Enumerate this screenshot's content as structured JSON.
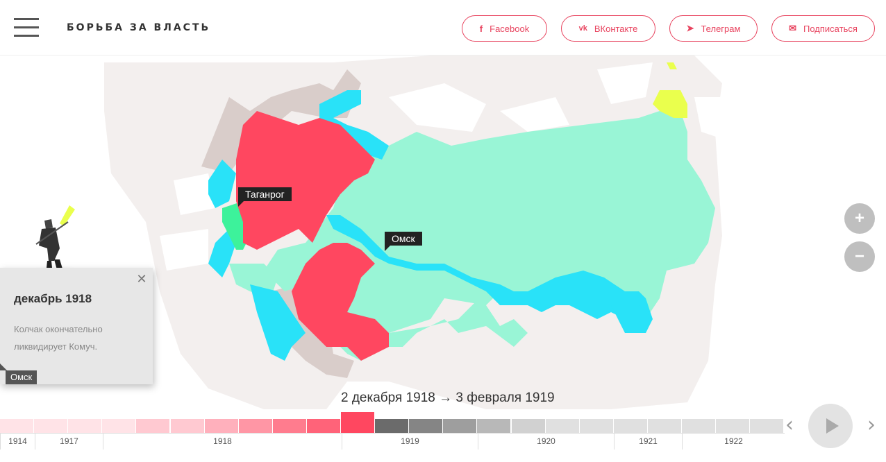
{
  "header": {
    "site_title": "БОРЬБА ЗА ВЛАСТЬ",
    "share_buttons": [
      {
        "icon": "facebook-icon",
        "icon_glyph": "f",
        "label": "Facebook"
      },
      {
        "icon": "vk-icon",
        "icon_glyph": "vk",
        "label": "ВКонтакте"
      },
      {
        "icon": "telegram-icon",
        "icon_glyph": "➤",
        "label": "Телеграм"
      },
      {
        "icon": "mail-icon",
        "icon_glyph": "✉",
        "label": "Подписаться"
      }
    ]
  },
  "map": {
    "cities": [
      {
        "name": "Таганрог"
      },
      {
        "name": "Омск"
      }
    ],
    "zoom_in_label": "+",
    "zoom_out_label": "−",
    "colors": {
      "red": "#ff4760",
      "mint": "#99f5d6",
      "cyan": "#29e2f8",
      "green": "#3df29b",
      "taupe": "#d9cdca",
      "yellow": "#eaff4d",
      "pale": "#f3efee"
    }
  },
  "event": {
    "date": "декабрь 1918",
    "text": "Колчак окончательно ликвидирует Комуч.",
    "location": "Омск",
    "close_glyph": "✕"
  },
  "period": {
    "label": "2 декабря 1918 → 3 февраля 1919"
  },
  "timeline": {
    "years": [
      "1914",
      "1917",
      "1918",
      "1919",
      "1920",
      "1921",
      "1922"
    ],
    "prev_glyph": "‹",
    "next_glyph": "›",
    "active_index": 10
  }
}
